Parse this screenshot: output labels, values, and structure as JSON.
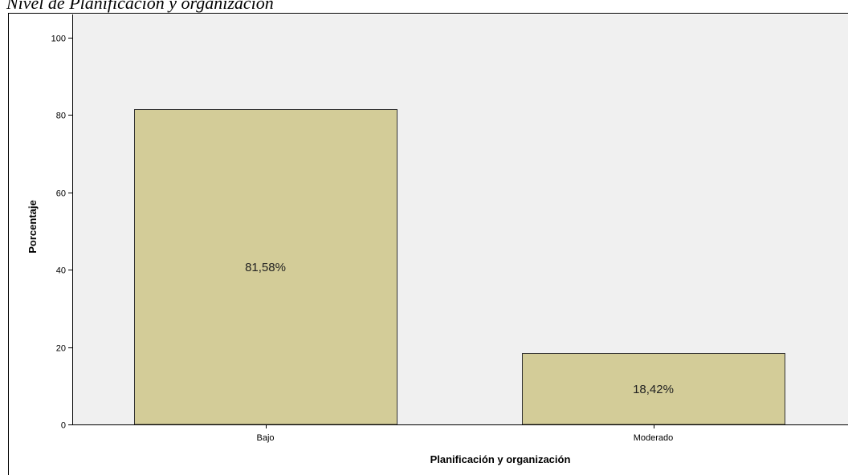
{
  "caption": "Nivel de Planificación y organización",
  "chart_data": {
    "type": "bar",
    "title": "",
    "xlabel": "Planificación y organización",
    "ylabel": "Porcentaje",
    "categories": [
      "Bajo",
      "Moderado"
    ],
    "values": [
      81.58,
      18.42
    ],
    "data_labels": [
      "81,58%",
      "18,42%"
    ],
    "ylim": [
      0,
      100
    ],
    "yticks": [
      0,
      20,
      40,
      60,
      80,
      100
    ],
    "grid": false,
    "bar_color": "#d3cc98",
    "plot_background": "#f0f0f0"
  }
}
